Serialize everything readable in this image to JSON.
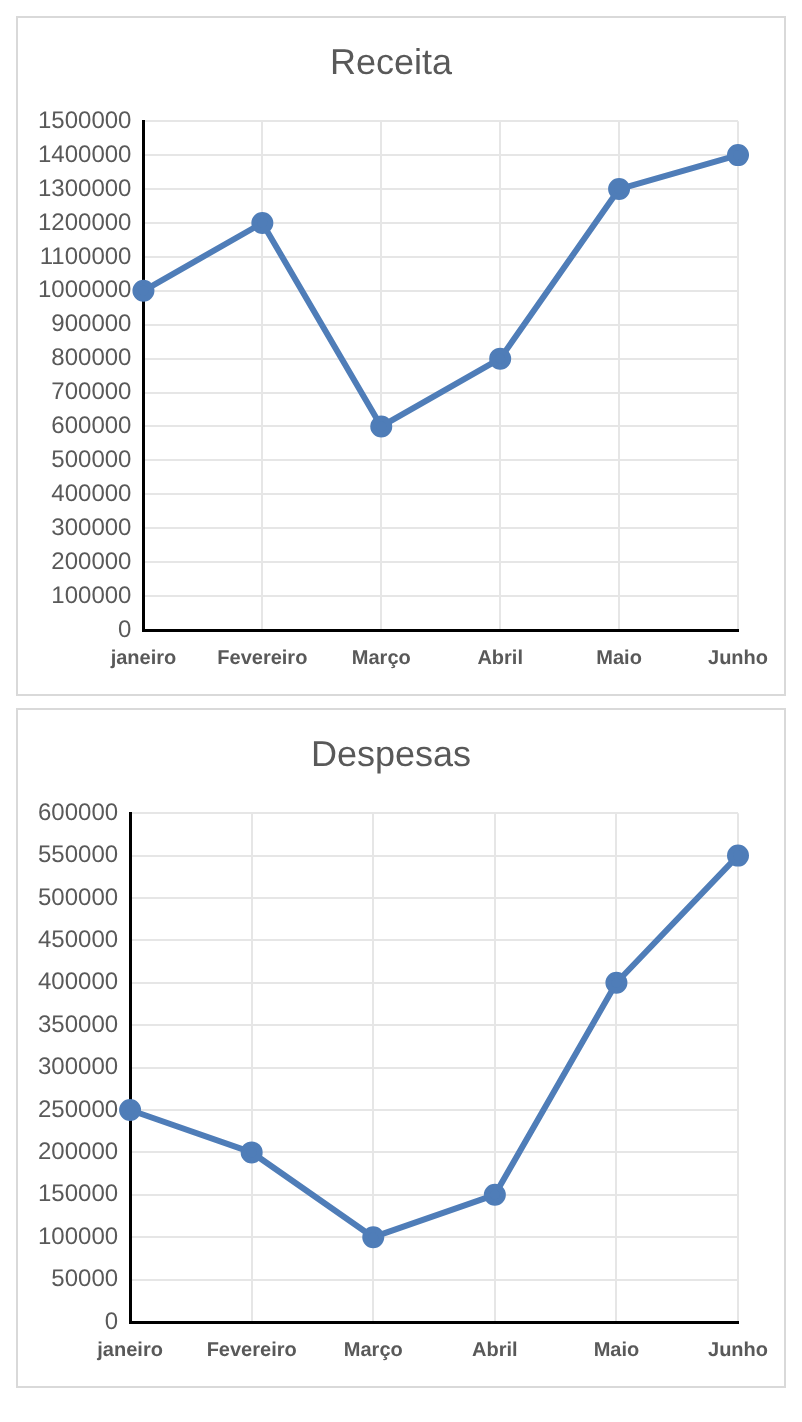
{
  "chart_data": [
    {
      "type": "line",
      "title": "Receita",
      "categories": [
        "janeiro",
        "Fevereiro",
        "Março",
        "Abril",
        "Maio",
        "Junho"
      ],
      "series": [
        {
          "color": "#4f7db8",
          "values": [
            1000000,
            1200000,
            600000,
            800000,
            1300000,
            1400000
          ]
        }
      ],
      "ylim": [
        0,
        1500000
      ],
      "yticks": [
        0,
        100000,
        200000,
        300000,
        400000,
        500000,
        600000,
        700000,
        800000,
        900000,
        1000000,
        1100000,
        1200000,
        1300000,
        1400000,
        1500000
      ],
      "grid": true,
      "marker": "circle",
      "legend": false
    },
    {
      "type": "line",
      "title": "Despesas",
      "categories": [
        "janeiro",
        "Fevereiro",
        "Março",
        "Abril",
        "Maio",
        "Junho"
      ],
      "series": [
        {
          "color": "#4f7db8",
          "values": [
            250000,
            200000,
            100000,
            150000,
            400000,
            550000
          ]
        }
      ],
      "ylim": [
        0,
        600000
      ],
      "yticks": [
        0,
        50000,
        100000,
        150000,
        200000,
        250000,
        300000,
        350000,
        400000,
        450000,
        500000,
        550000,
        600000
      ],
      "grid": true,
      "marker": "circle",
      "legend": false
    }
  ]
}
